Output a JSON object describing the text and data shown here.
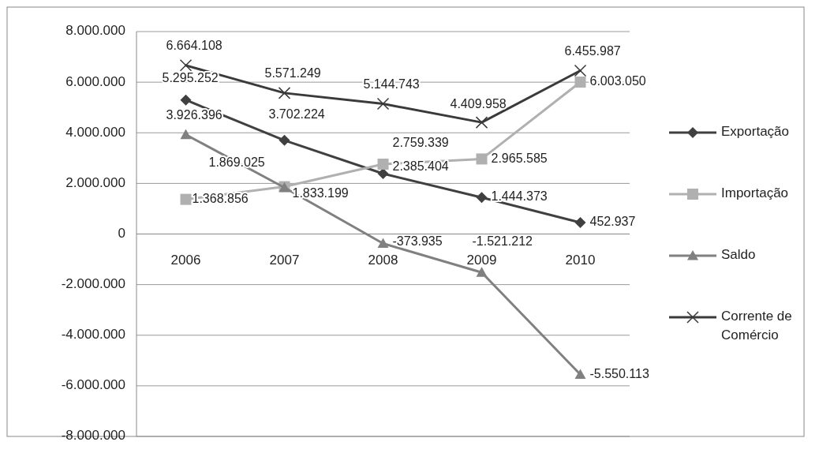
{
  "chart_data": {
    "type": "line",
    "categories": [
      "2006",
      "2007",
      "2008",
      "2009",
      "2010"
    ],
    "series": [
      {
        "name": "Exportação",
        "color": "#404040",
        "marker": "diamond",
        "values": [
          5295252,
          3702224,
          2385404,
          1444373,
          452937
        ],
        "value_labels": [
          "5.295.252",
          "3.702.224",
          "2.385.404",
          "1.444.373",
          "452.937"
        ]
      },
      {
        "name": "Importação",
        "color": "#b0b0b0",
        "marker": "square",
        "values": [
          1368856,
          1869025,
          2759339,
          2965585,
          6003050
        ],
        "value_labels": [
          "1.368.856",
          "1.869.025",
          "2.759.339",
          "2.965.585",
          "6.003.050"
        ]
      },
      {
        "name": "Saldo",
        "color": "#808080",
        "marker": "triangle",
        "values": [
          3926396,
          1833199,
          -373935,
          -1521212,
          -5550113
        ],
        "value_labels": [
          "3.926.396",
          "1.833.199",
          "-373.935",
          "-1.521.212",
          "-5.550.113"
        ]
      },
      {
        "name": "Corrente de Comércio",
        "color": "#3a3a3a",
        "marker": "cross",
        "values": [
          6664108,
          5571249,
          5144743,
          4409958,
          6455987
        ],
        "value_labels": [
          "6.664.108",
          "5.571.249",
          "5.144.743",
          "4.409.958",
          "6.455.987"
        ]
      }
    ],
    "ylim": [
      -8000000,
      8000000
    ],
    "yticks": [
      {
        "value": -8000000,
        "label": "-8.000.000"
      },
      {
        "value": -6000000,
        "label": "-6.000.000"
      },
      {
        "value": -4000000,
        "label": "-4.000.000"
      },
      {
        "value": -2000000,
        "label": "-2.000.000"
      },
      0,
      {
        "value": 2000000,
        "label": "2.000.000"
      },
      {
        "value": 4000000,
        "label": "4.000.000"
      },
      {
        "value": 6000000,
        "label": "6.000.000"
      },
      {
        "value": 8000000,
        "label": "8.000.000"
      }
    ],
    "grid": "y",
    "legend": "right"
  }
}
